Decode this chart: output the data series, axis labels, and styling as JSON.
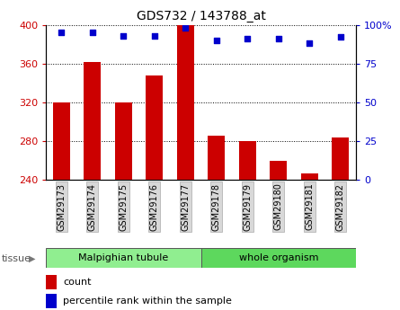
{
  "title": "GDS732 / 143788_at",
  "samples": [
    "GSM29173",
    "GSM29174",
    "GSM29175",
    "GSM29176",
    "GSM29177",
    "GSM29178",
    "GSM29179",
    "GSM29180",
    "GSM29181",
    "GSM29182"
  ],
  "counts": [
    320,
    362,
    320,
    348,
    400,
    286,
    280,
    260,
    247,
    284
  ],
  "percentile_ranks": [
    95,
    95,
    93,
    93,
    98,
    90,
    91,
    91,
    88,
    92
  ],
  "ylim_left": [
    240,
    400
  ],
  "ylim_right": [
    0,
    100
  ],
  "yticks_left": [
    240,
    280,
    320,
    360,
    400
  ],
  "yticks_right": [
    0,
    25,
    50,
    75,
    100
  ],
  "bar_color": "#cc0000",
  "scatter_color": "#0000cc",
  "tissue_groups": [
    {
      "label": "Malpighian tubule",
      "start": 0,
      "end": 4,
      "color": "#90ee90"
    },
    {
      "label": "whole organism",
      "start": 5,
      "end": 9,
      "color": "#5dd85d"
    }
  ],
  "tissue_label": "tissue",
  "legend_count_label": "count",
  "legend_pct_label": "percentile rank within the sample",
  "bar_color_leg": "#cc0000",
  "scatter_color_leg": "#0000cc",
  "grid_linestyle": "dotted",
  "bar_width": 0.55,
  "tick_label_color_left": "#cc0000",
  "tick_label_color_right": "#0000cc",
  "xlabel_box_color": "#d8d8d8",
  "xlabel_box_edge": "#aaaaaa"
}
